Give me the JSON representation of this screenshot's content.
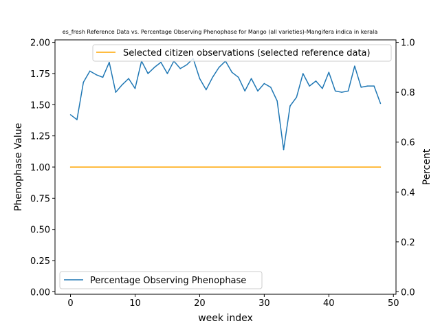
{
  "chart_data": {
    "type": "line",
    "title": "es_fresh Reference Data vs. Percentage Observing Phenophase for Mango (all varieties)-Mangifera indica in kerala",
    "xlabel": "week index",
    "ylabel_left": "Phenophase Value",
    "ylabel_right": "Percent",
    "xlim": [
      -2.4,
      50.4
    ],
    "ylim_left": [
      -0.02,
      2.02
    ],
    "ylim_right": [
      -0.01,
      1.01
    ],
    "xticks": [
      0,
      10,
      20,
      30,
      40,
      50
    ],
    "xtick_labels": [
      "0",
      "10",
      "20",
      "30",
      "40",
      "50"
    ],
    "yticks_left": [
      0.0,
      0.25,
      0.5,
      0.75,
      1.0,
      1.25,
      1.5,
      1.75,
      2.0
    ],
    "ytick_labels_left": [
      "0.00",
      "0.25",
      "0.50",
      "0.75",
      "1.00",
      "1.25",
      "1.50",
      "1.75",
      "2.00"
    ],
    "yticks_right": [
      0.0,
      0.2,
      0.4,
      0.6,
      0.8,
      1.0
    ],
    "ytick_labels_right": [
      "0.0",
      "0.2",
      "0.4",
      "0.6",
      "0.8",
      "1.0"
    ],
    "grid": false,
    "series": [
      {
        "name": "Selected citizen observations (selected reference data)",
        "axis": "left",
        "color": "#ffa500",
        "x": [
          0,
          48
        ],
        "y": [
          1.0,
          1.0
        ]
      },
      {
        "name": "Percentage Observing Phenophase",
        "axis": "left",
        "color": "#1f77b4",
        "x": [
          0,
          1,
          2,
          3,
          4,
          5,
          6,
          7,
          8,
          9,
          10,
          11,
          12,
          13,
          14,
          15,
          16,
          17,
          18,
          19,
          20,
          21,
          22,
          23,
          24,
          25,
          26,
          27,
          28,
          29,
          30,
          31,
          32,
          33,
          34,
          35,
          36,
          37,
          38,
          39,
          40,
          41,
          42,
          43,
          44,
          45,
          46,
          47,
          48
        ],
        "y": [
          1.42,
          1.38,
          1.68,
          1.77,
          1.74,
          1.72,
          1.84,
          1.6,
          1.66,
          1.71,
          1.63,
          1.85,
          1.75,
          1.8,
          1.84,
          1.75,
          1.85,
          1.79,
          1.82,
          1.87,
          1.71,
          1.62,
          1.72,
          1.8,
          1.85,
          1.76,
          1.72,
          1.61,
          1.71,
          1.61,
          1.67,
          1.64,
          1.53,
          1.14,
          1.49,
          1.56,
          1.75,
          1.65,
          1.69,
          1.63,
          1.76,
          1.61,
          1.6,
          1.61,
          1.81,
          1.64,
          1.65,
          1.65,
          1.51
        ]
      }
    ],
    "legends": [
      {
        "placement": "top-right",
        "entries": [
          "Selected citizen observations (selected reference data)"
        ]
      },
      {
        "placement": "lower-left",
        "entries": [
          "Percentage Observing Phenophase"
        ]
      }
    ]
  }
}
